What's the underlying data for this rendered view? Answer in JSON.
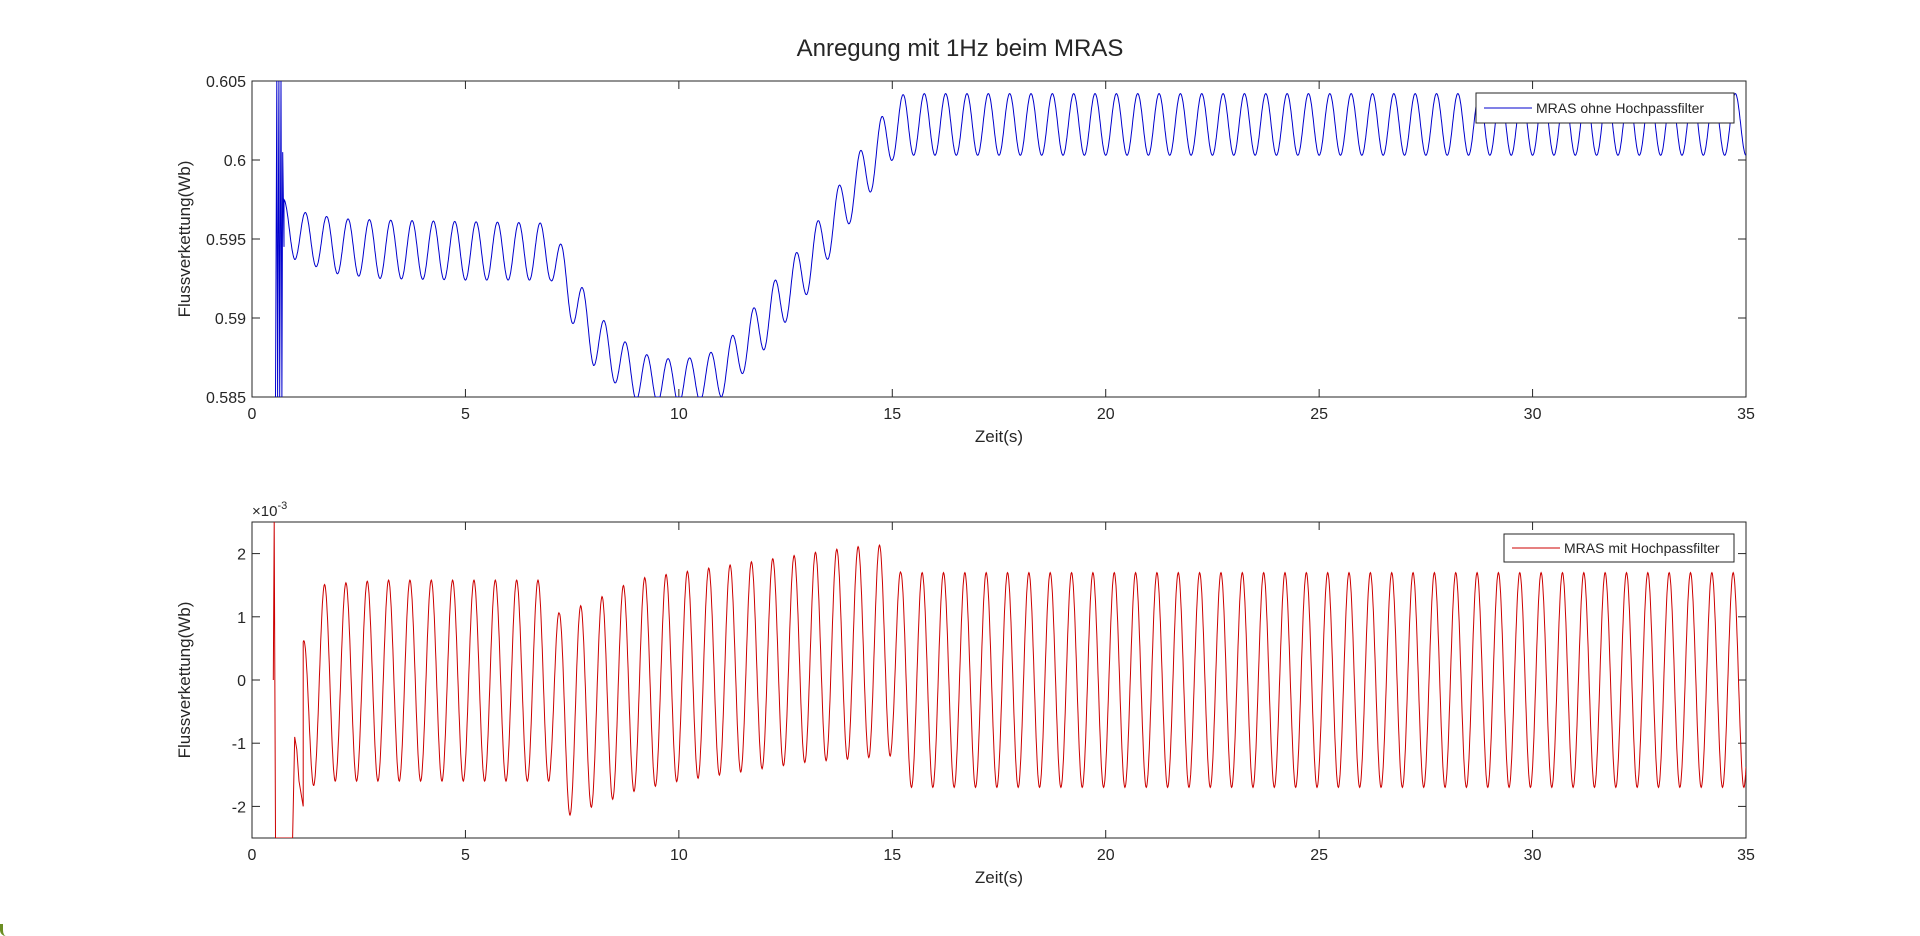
{
  "figure": {
    "title": "Anregung mit 1Hz beim MRAS"
  },
  "chart_data": [
    {
      "type": "line",
      "xlabel": "Zeit(s)",
      "ylabel": "Flussverkettung(Wb)",
      "xlim": [
        0,
        35
      ],
      "ylim": [
        0.585,
        0.605
      ],
      "xticks": [
        0,
        5,
        10,
        15,
        20,
        25,
        30,
        35
      ],
      "xtick_labels": [
        "0",
        "5",
        "10",
        "15",
        "20",
        "25",
        "30",
        "35"
      ],
      "yticks": [
        0.585,
        0.59,
        0.595,
        0.6,
        0.605
      ],
      "ytick_labels": [
        "0.585",
        "0.59",
        "0.595",
        "0.6",
        "0.605"
      ],
      "grid": false,
      "legend_position": "top-right",
      "series": [
        {
          "name": "MRAS ohne Hochpassfilter",
          "color": "#0000cd",
          "sine_frequency_hz": 2,
          "initial_transient_t": [
            0.55,
            0.58,
            0.6,
            0.63,
            0.65,
            0.68,
            0.7,
            0.72,
            0.75
          ],
          "initial_transient_y": [
            0.585,
            0.605,
            0.585,
            0.605,
            0.585,
            0.605,
            0.585,
            0.6005,
            0.5945
          ],
          "envelope_t": [
            0.75,
            1,
            2,
            3,
            5,
            7,
            8,
            9,
            10,
            11,
            12,
            13,
            14,
            15,
            15.3,
            20,
            25,
            30,
            35
          ],
          "envelope_upper": [
            0.5975,
            0.5968,
            0.5963,
            0.5962,
            0.5961,
            0.596,
            0.5905,
            0.5878,
            0.5873,
            0.588,
            0.5915,
            0.595,
            0.5995,
            0.6038,
            0.6042,
            0.6042,
            0.6042,
            0.6042,
            0.6042
          ],
          "envelope_lower": [
            0.5945,
            0.5937,
            0.5928,
            0.5925,
            0.5924,
            0.5924,
            0.587,
            0.5848,
            0.5845,
            0.585,
            0.588,
            0.5915,
            0.596,
            0.6,
            0.6003,
            0.6003,
            0.6003,
            0.6003,
            0.6003
          ]
        }
      ]
    },
    {
      "type": "line",
      "xlabel": "Zeit(s)",
      "ylabel": "Flussverkettung(Wb)",
      "xlim": [
        0,
        35
      ],
      "ylim": [
        -2.5,
        2.5
      ],
      "y_exponent_label": "×10",
      "y_exponent_power": "-3",
      "xticks": [
        0,
        5,
        10,
        15,
        20,
        25,
        30,
        35
      ],
      "xtick_labels": [
        "0",
        "5",
        "10",
        "15",
        "20",
        "25",
        "30",
        "35"
      ],
      "yticks": [
        -2,
        -1,
        0,
        1,
        2
      ],
      "ytick_labels": [
        "-2",
        "-1",
        "0",
        "1",
        "2"
      ],
      "grid": false,
      "legend_position": "top-right",
      "series": [
        {
          "name": "MRAS mit Hochpassfilter",
          "color": "#cc0000",
          "sine_frequency_hz": 2,
          "initial_transient_t": [
            0.5,
            0.52,
            0.55,
            0.58,
            0.6,
            0.65,
            0.7,
            0.75,
            0.8,
            0.85,
            0.9,
            0.95,
            1.0,
            1.05,
            1.1,
            1.2
          ],
          "initial_transient_y": [
            0,
            2.5,
            -2.5,
            -2.5,
            -2.5,
            -2.5,
            -2.5,
            -2.5,
            -2.5,
            -2.5,
            -2.5,
            -2.5,
            -0.9,
            -1.1,
            -1.6,
            -2.0
          ],
          "envelope_t": [
            1.2,
            1.5,
            3,
            7,
            7.2,
            8,
            9,
            10,
            11,
            12,
            13,
            14,
            15,
            15.2,
            20,
            25,
            30,
            35
          ],
          "envelope_upper": [
            0.6,
            1.5,
            1.58,
            1.58,
            1.05,
            1.25,
            1.6,
            1.7,
            1.8,
            1.9,
            2.0,
            2.1,
            2.15,
            1.7,
            1.7,
            1.7,
            1.7,
            1.7
          ],
          "envelope_lower": [
            -2.0,
            -1.6,
            -1.6,
            -1.6,
            -2.2,
            -2.0,
            -1.75,
            -1.6,
            -1.5,
            -1.4,
            -1.3,
            -1.25,
            -1.2,
            -1.7,
            -1.7,
            -1.7,
            -1.7,
            -1.7
          ]
        }
      ]
    }
  ]
}
